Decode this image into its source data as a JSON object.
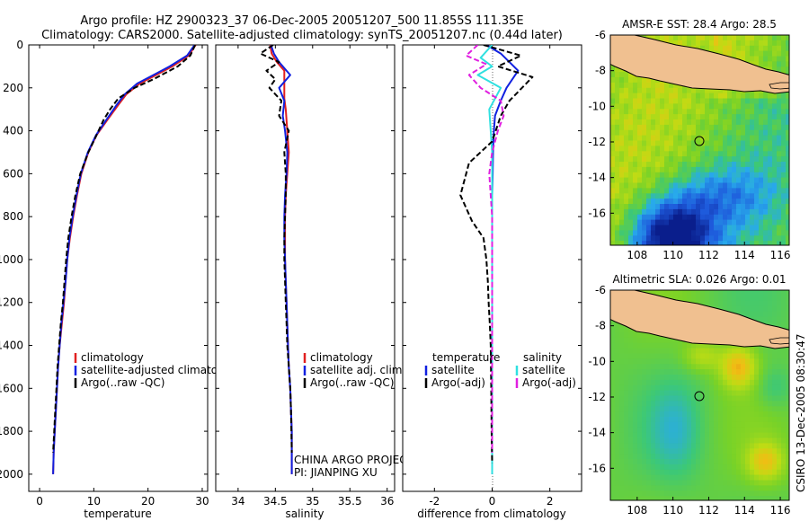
{
  "header": {
    "title1": "Argo profile: HZ 2900323_37 06-Dec-2005 20051207_500 11.855S 111.35E",
    "title2": "Climatology: CARS2000. Satellite-adjusted climatology: synTS_20051207.nc (0.44d later)"
  },
  "credit": "CSIRO 13-Dec-2005 08:30:47",
  "project_note": [
    "CHINA ARGO PROJECT",
    "PI: JIANPING XU"
  ],
  "colors": {
    "red": "#e02020",
    "blue": "#1020e0",
    "black": "#000000",
    "cyan": "#30e0e0",
    "magenta": "#e020e0",
    "land": "#f0c090"
  },
  "chart_data": [
    {
      "type": "line",
      "id": "temperature",
      "xlabel": "temperature",
      "ylabel": "",
      "xlim": [
        -2,
        31
      ],
      "ylim": [
        2080,
        0
      ],
      "xticks": [
        0,
        10,
        20,
        30
      ],
      "yticks": [
        0,
        200,
        400,
        600,
        800,
        1000,
        1200,
        1400,
        1600,
        1800,
        2000
      ],
      "legend": [
        "climatology",
        "satellite-adjusted climatology",
        "Argo(..raw -QC)"
      ],
      "series": [
        {
          "name": "climatology",
          "color": "red",
          "dash": "solid",
          "x": [
            28.8,
            27.5,
            24.5,
            21.5,
            18.5,
            16.0,
            14.5,
            12.5,
            10.5,
            9.0,
            7.7,
            6.9,
            6.2,
            5.6,
            5.1,
            4.8,
            4.5,
            4.1,
            3.7,
            3.4,
            3.2,
            3.0,
            2.8,
            2.6,
            2.5
          ],
          "y": [
            0,
            50,
            100,
            140,
            180,
            230,
            280,
            350,
            420,
            500,
            600,
            700,
            800,
            900,
            1000,
            1100,
            1200,
            1300,
            1400,
            1500,
            1600,
            1700,
            1800,
            1900,
            2000
          ]
        },
        {
          "name": "satellite-adjusted climatology",
          "color": "blue",
          "dash": "solid",
          "x": [
            28.6,
            27.2,
            24.0,
            21.0,
            18.0,
            15.7,
            14.2,
            12.3,
            10.4,
            8.9,
            7.6,
            6.8,
            6.1,
            5.5,
            5.1,
            4.8,
            4.4,
            4.0,
            3.7,
            3.4,
            3.2,
            3.0,
            2.8,
            2.6,
            2.5
          ],
          "y": [
            0,
            50,
            100,
            140,
            180,
            230,
            280,
            350,
            420,
            500,
            600,
            700,
            800,
            900,
            1000,
            1100,
            1200,
            1300,
            1400,
            1500,
            1600,
            1700,
            1800,
            1900,
            2000
          ]
        },
        {
          "name": "Argo(..raw -QC)",
          "color": "black",
          "dash": "dash",
          "x": [
            28.7,
            27.8,
            25.5,
            21.0,
            17.5,
            14.5,
            13.0,
            11.8,
            10.5,
            9.0,
            7.5,
            6.6,
            5.9,
            5.3,
            4.9,
            4.6,
            4.3,
            3.9,
            3.6,
            3.3,
            3.1,
            2.9,
            2.7,
            2.5
          ],
          "y": [
            0,
            50,
            100,
            160,
            200,
            250,
            300,
            350,
            420,
            500,
            600,
            700,
            800,
            900,
            1000,
            1100,
            1200,
            1300,
            1400,
            1500,
            1600,
            1700,
            1800,
            1900
          ]
        }
      ]
    },
    {
      "type": "line",
      "id": "salinity",
      "xlabel": "salinity",
      "ylabel": "",
      "xlim": [
        33.7,
        36.1
      ],
      "ylim": [
        2080,
        0
      ],
      "xticks": [
        34,
        34.5,
        35,
        35.5,
        36
      ],
      "xtick_labels": [
        "34",
        "34.5",
        "35",
        "35.5",
        "36"
      ],
      "legend": [
        "climatology",
        "satellite adj. clim.",
        "Argo(..raw -QC)"
      ],
      "series": [
        {
          "name": "climatology",
          "color": "red",
          "dash": "solid",
          "x": [
            34.43,
            34.45,
            34.52,
            34.62,
            34.62,
            34.62,
            34.64,
            34.66,
            34.68,
            34.66,
            34.64,
            34.63,
            34.63,
            34.63,
            34.64,
            34.65,
            34.66,
            34.67,
            34.68,
            34.7,
            34.71,
            34.72,
            34.72
          ],
          "y": [
            0,
            40,
            80,
            120,
            180,
            250,
            300,
            400,
            500,
            600,
            700,
            800,
            900,
            1000,
            1100,
            1200,
            1300,
            1400,
            1500,
            1600,
            1700,
            1800,
            2000
          ]
        },
        {
          "name": "satellite adj. clim.",
          "color": "blue",
          "dash": "solid",
          "x": [
            34.44,
            34.48,
            34.55,
            34.7,
            34.55,
            34.62,
            34.6,
            34.63,
            34.66,
            34.65,
            34.63,
            34.62,
            34.62,
            34.63,
            34.64,
            34.65,
            34.66,
            34.67,
            34.68,
            34.7,
            34.71,
            34.72,
            34.72
          ],
          "y": [
            0,
            40,
            80,
            140,
            200,
            260,
            330,
            400,
            500,
            600,
            700,
            800,
            900,
            1000,
            1100,
            1200,
            1300,
            1400,
            1500,
            1600,
            1700,
            1800,
            2000
          ]
        },
        {
          "name": "Argo(..raw -QC)",
          "color": "black",
          "dash": "dash",
          "x": [
            34.47,
            34.3,
            34.55,
            34.38,
            34.5,
            34.42,
            34.58,
            34.55,
            34.68,
            34.62,
            34.64,
            34.64,
            34.63,
            34.62,
            34.62,
            34.63,
            34.64,
            34.65,
            34.66,
            34.68,
            34.7,
            34.71,
            34.72
          ],
          "y": [
            0,
            40,
            80,
            120,
            160,
            200,
            260,
            330,
            400,
            500,
            600,
            700,
            800,
            900,
            1000,
            1100,
            1200,
            1300,
            1400,
            1500,
            1600,
            1700,
            1900
          ]
        }
      ]
    },
    {
      "type": "line",
      "id": "difference",
      "xlabel": "difference from climatology",
      "ylabel": "",
      "xlim": [
        -3.1,
        3.1
      ],
      "ylim": [
        2080,
        0
      ],
      "xticks": [
        -2,
        0,
        2
      ],
      "legend_left_heading": "temperature",
      "legend_right_heading": "salinity",
      "legend_left": [
        "satellite",
        "Argo(-adj)"
      ],
      "legend_right": [
        "satellite",
        "Argo(-adj)"
      ],
      "series": [
        {
          "name": "temperature satellite",
          "color": "blue",
          "dash": "solid",
          "x": [
            -0.2,
            0.3,
            0.9,
            0.5,
            0.3,
            0.1,
            0.05,
            0.03,
            0.02,
            0.0,
            0.0,
            0.0,
            0.0,
            0.0,
            0.0,
            0.0,
            0.0,
            0.0,
            0.0,
            0.0,
            0.0
          ],
          "y": [
            0,
            40,
            120,
            200,
            260,
            330,
            420,
            500,
            600,
            700,
            800,
            900,
            1000,
            1100,
            1200,
            1300,
            1400,
            1500,
            1600,
            1800,
            2000
          ]
        },
        {
          "name": "salinity satellite",
          "color": "cyan",
          "dash": "solid",
          "x": [
            0.0,
            -0.4,
            0.0,
            -0.5,
            0.3,
            -0.1,
            -0.05,
            0.0,
            0.0,
            0.0,
            0.0,
            0.0,
            0.0,
            0.0,
            0.0,
            0.0,
            0.0,
            0.0,
            0.0,
            0.0
          ],
          "y": [
            0,
            60,
            100,
            140,
            200,
            300,
            400,
            500,
            600,
            700,
            800,
            900,
            1000,
            1100,
            1200,
            1300,
            1400,
            1600,
            1800,
            2000
          ]
        },
        {
          "name": "temperature Argo(-adj)",
          "color": "black",
          "dash": "dash",
          "x": [
            -0.3,
            1.0,
            0.2,
            1.4,
            0.6,
            0.3,
            0.0,
            -0.8,
            -1.1,
            -0.7,
            -0.3,
            -0.2,
            -0.15,
            -0.12,
            -0.08,
            -0.05,
            -0.03,
            -0.02,
            0.0
          ],
          "y": [
            0,
            50,
            100,
            150,
            260,
            330,
            450,
            550,
            700,
            820,
            900,
            1000,
            1100,
            1200,
            1300,
            1400,
            1600,
            1800,
            1950
          ]
        },
        {
          "name": "salinity Argo(-adj)",
          "color": "magenta",
          "dash": "dash",
          "x": [
            -0.5,
            -0.9,
            -0.2,
            -0.8,
            -0.4,
            0.3,
            0.4,
            0.2,
            0.0,
            -0.1,
            0.0,
            0.0,
            0.0
          ],
          "y": [
            0,
            50,
            90,
            140,
            200,
            260,
            330,
            400,
            500,
            600,
            800,
            1200,
            1900
          ]
        }
      ]
    },
    {
      "type": "heatmap",
      "id": "sst_map",
      "title": "AMSR-E SST: 28.4 Argo: 28.5",
      "xlim": [
        106.5,
        116.5
      ],
      "ylim": [
        -17.8,
        -6
      ],
      "xticks": [
        108,
        110,
        112,
        114,
        116
      ],
      "yticks": [
        -6,
        -8,
        -10,
        -12,
        -14,
        -16
      ],
      "argo_position": {
        "lon": 111.35,
        "lat": -11.855
      }
    },
    {
      "type": "heatmap",
      "id": "sla_map",
      "title": "Altimetric SLA: 0.026 Argo: 0.01",
      "xlim": [
        106.5,
        116.5
      ],
      "ylim": [
        -17.8,
        -6
      ],
      "xticks": [
        108,
        110,
        112,
        114,
        116
      ],
      "yticks": [
        -6,
        -8,
        -10,
        -12,
        -14,
        -16
      ],
      "argo_position": {
        "lon": 111.35,
        "lat": -11.855
      }
    }
  ]
}
